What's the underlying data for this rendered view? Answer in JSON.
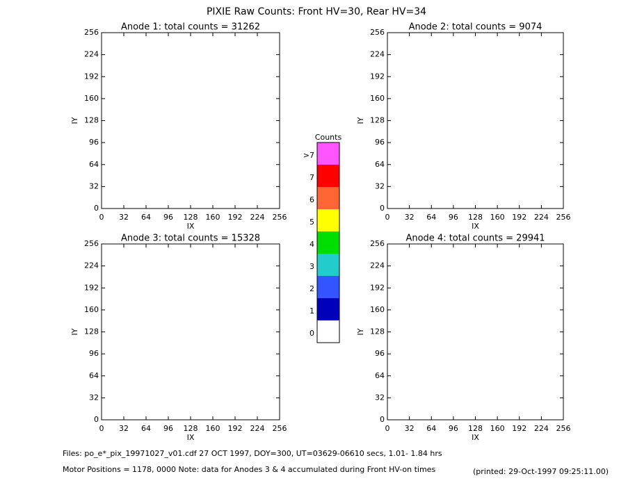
{
  "title": "PIXIE Raw Counts:  Front HV=30, Rear HV=34",
  "chart_data": [
    {
      "type": "heatmap",
      "title": "Anode 1: total counts = 31262",
      "xlabel": "IX",
      "ylabel": "IY",
      "xlim": [
        0,
        256
      ],
      "ylim": [
        0,
        256
      ],
      "xticks": [
        0,
        32,
        64,
        96,
        128,
        160,
        192,
        224,
        256
      ],
      "yticks": [
        0,
        32,
        64,
        96,
        128,
        160,
        192,
        224,
        256
      ]
    },
    {
      "type": "heatmap",
      "title": "Anode 2: total counts = 9074",
      "xlabel": "IX",
      "ylabel": "IY",
      "xlim": [
        0,
        256
      ],
      "ylim": [
        0,
        256
      ],
      "xticks": [
        0,
        32,
        64,
        96,
        128,
        160,
        192,
        224,
        256
      ],
      "yticks": [
        0,
        32,
        64,
        96,
        128,
        160,
        192,
        224,
        256
      ]
    },
    {
      "type": "heatmap",
      "title": "Anode 3: total counts = 15328",
      "xlabel": "IX",
      "ylabel": "IY",
      "xlim": [
        0,
        256
      ],
      "ylim": [
        0,
        256
      ],
      "xticks": [
        0,
        32,
        64,
        96,
        128,
        160,
        192,
        224,
        256
      ],
      "yticks": [
        0,
        32,
        64,
        96,
        128,
        160,
        192,
        224,
        256
      ]
    },
    {
      "type": "heatmap",
      "title": "Anode 4: total counts = 29941",
      "xlabel": "IX",
      "ylabel": "IY",
      "xlim": [
        0,
        256
      ],
      "ylim": [
        0,
        256
      ],
      "xticks": [
        0,
        32,
        64,
        96,
        128,
        160,
        192,
        224,
        256
      ],
      "yticks": [
        0,
        32,
        64,
        96,
        128,
        160,
        192,
        224,
        256
      ]
    }
  ],
  "colorbar": {
    "title": "Counts",
    "levels": [
      {
        "label": ">7",
        "color": "#ff55ff"
      },
      {
        "label": "7",
        "color": "#ff0000"
      },
      {
        "label": "6",
        "color": "#ff6633"
      },
      {
        "label": "5",
        "color": "#ffff00"
      },
      {
        "label": "4",
        "color": "#00dd00"
      },
      {
        "label": "3",
        "color": "#22cccc"
      },
      {
        "label": "2",
        "color": "#3355ff"
      },
      {
        "label": "1",
        "color": "#0000bb"
      },
      {
        "label": "0",
        "color": "#ffffff"
      }
    ]
  },
  "footer": {
    "files": "Files: po_e*_pix_19971027_v01.cdf    27 OCT 1997, DOY=300, UT=03629-06610 secs,  1.01- 1.84 hrs",
    "motor": "Motor Positions = 1178, 0000    Note: data for Anodes 3 & 4 accumulated during Front HV-on times",
    "printed": "(printed: 29-Oct-1997 09:25:11.00)"
  }
}
